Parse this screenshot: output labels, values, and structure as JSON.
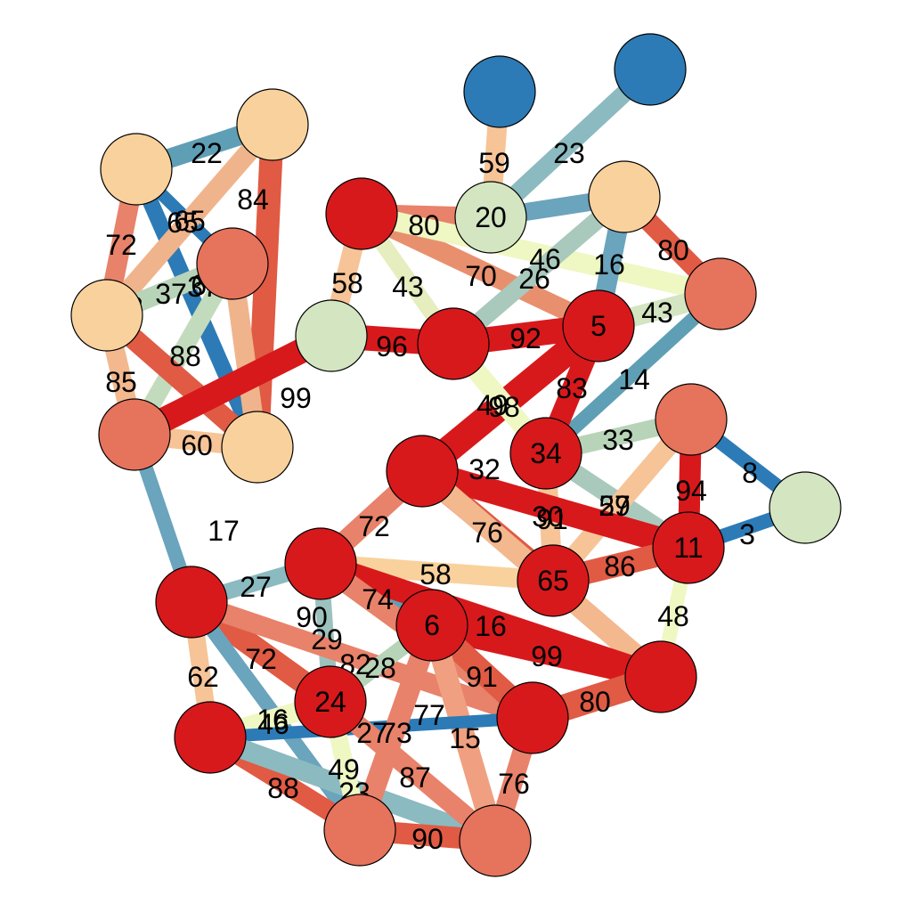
{
  "palette": {
    "dark_red": "#d7191c",
    "salmon": "#e6735c",
    "peach": "#f9d19c",
    "pale_yellow": "#eff7c3",
    "sage": "#d3e5c1",
    "steel_blue": "#2c7bb6"
  },
  "nodes": [
    {
      "id": "n1",
      "label": "",
      "color": "#2c7bb6"
    },
    {
      "id": "n2",
      "label": "",
      "color": "#2c7bb6"
    },
    {
      "id": "n3",
      "label": "20",
      "color": "#d3e5c1"
    },
    {
      "id": "n4",
      "label": "",
      "color": "#f9d19c"
    },
    {
      "id": "n5",
      "label": "",
      "color": "#f9d19c"
    },
    {
      "id": "n6",
      "label": "",
      "color": "#e6735c"
    },
    {
      "id": "n7",
      "label": "",
      "color": "#f9d19c"
    },
    {
      "id": "n8",
      "label": "",
      "color": "#e6735c"
    },
    {
      "id": "n9",
      "label": "",
      "color": "#f9d19c"
    },
    {
      "id": "n10",
      "label": "",
      "color": "#d7191c"
    },
    {
      "id": "n11",
      "label": "",
      "color": "#d3e5c1"
    },
    {
      "id": "n12",
      "label": "",
      "color": "#d7191c"
    },
    {
      "id": "n13",
      "label": "5",
      "color": "#d7191c"
    },
    {
      "id": "n14",
      "label": "",
      "color": "#f9d19c"
    },
    {
      "id": "n15",
      "label": "",
      "color": "#e6735c"
    },
    {
      "id": "n16",
      "label": "34",
      "color": "#d7191c"
    },
    {
      "id": "n17",
      "label": "",
      "color": "#d7191c"
    },
    {
      "id": "n18",
      "label": "",
      "color": "#e6735c"
    },
    {
      "id": "n19",
      "label": "",
      "color": "#d3e5c1"
    },
    {
      "id": "n20",
      "label": "11",
      "color": "#d7191c"
    },
    {
      "id": "n21",
      "label": "65",
      "color": "#d7191c"
    },
    {
      "id": "n22",
      "label": "",
      "color": "#d7191c"
    },
    {
      "id": "n23",
      "label": "",
      "color": "#d7191c"
    },
    {
      "id": "n24",
      "label": "6",
      "color": "#d7191c"
    },
    {
      "id": "n25",
      "label": "",
      "color": "#d7191c"
    },
    {
      "id": "n26",
      "label": "24",
      "color": "#d7191c"
    },
    {
      "id": "n27",
      "label": "",
      "color": "#d7191c"
    },
    {
      "id": "n28",
      "label": "",
      "color": "#d7191c"
    },
    {
      "id": "n29",
      "label": "",
      "color": "#e6735c"
    },
    {
      "id": "n30",
      "label": "",
      "color": "#e6735c"
    }
  ],
  "edges": [
    {
      "from": "n4",
      "to": "n5",
      "label": "22",
      "color": "#5f9fb5"
    },
    {
      "from": "n4",
      "to": "n7",
      "label": "72",
      "color": "#e8826a"
    },
    {
      "from": "n4",
      "to": "n9",
      "label": "3",
      "color": "#2c7bb6"
    },
    {
      "from": "n4",
      "to": "n6",
      "label": "65",
      "color": "#2c7bb6"
    },
    {
      "from": "n5",
      "to": "n7",
      "label": "65",
      "color": "#f0b48c"
    },
    {
      "from": "n5",
      "to": "n9",
      "label": "84",
      "color": "#e05a44"
    },
    {
      "from": "n6",
      "to": "n7",
      "label": "37",
      "color": "#b8d4b8"
    },
    {
      "from": "n6",
      "to": "n8",
      "label": "37",
      "color": "#c3dbbd"
    },
    {
      "from": "n6",
      "to": "n9",
      "label": "64",
      "color": "#f0b48c"
    },
    {
      "from": "n7",
      "to": "n8",
      "label": "88",
      "color": "#f3b88e"
    },
    {
      "from": "n7",
      "to": "n9",
      "label": "85",
      "color": "#e05a44"
    },
    {
      "from": "n9",
      "to": "n8",
      "label": "60",
      "color": "#f6c497"
    },
    {
      "from": "n11",
      "to": "n8",
      "label": "99",
      "color": "#d7191c"
    },
    {
      "from": "n8",
      "to": "n22",
      "label": "17",
      "color": "#6aa4bd"
    },
    {
      "from": "n1",
      "to": "n3",
      "label": "59",
      "color": "#f6c497"
    },
    {
      "from": "n2",
      "to": "n3",
      "label": "23",
      "color": "#8bbac0"
    },
    {
      "from": "n10",
      "to": "n3",
      "label": "80",
      "color": "#e8826a"
    },
    {
      "from": "n3",
      "to": "n14",
      "label": "20",
      "color": "#6aa4bd"
    },
    {
      "from": "n10",
      "to": "n11",
      "label": "58",
      "color": "#f6c497"
    },
    {
      "from": "n10",
      "to": "n12",
      "label": "43",
      "color": "#e6edbe"
    },
    {
      "from": "n10",
      "to": "n13",
      "label": "70",
      "color": "#e8906e"
    },
    {
      "from": "n10",
      "to": "n15",
      "label": "46",
      "color": "#eff7c3"
    },
    {
      "from": "n14",
      "to": "n12",
      "label": "26",
      "color": "#a9c9bd"
    },
    {
      "from": "n14",
      "to": "n15",
      "label": "80",
      "color": "#e05a44"
    },
    {
      "from": "n14",
      "to": "n13",
      "label": "16",
      "color": "#6aa4bd"
    },
    {
      "from": "n11",
      "to": "n12",
      "label": "96",
      "color": "#d7191c"
    },
    {
      "from": "n12",
      "to": "n13",
      "label": "92",
      "color": "#d7191c"
    },
    {
      "from": "n13",
      "to": "n15",
      "label": "43",
      "color": "#d3e5c1"
    },
    {
      "from": "n15",
      "to": "n16",
      "label": "14",
      "color": "#5f9fb5"
    },
    {
      "from": "n13",
      "to": "n17",
      "label": "98",
      "color": "#d7191c"
    },
    {
      "from": "n13",
      "to": "n16",
      "label": "83",
      "color": "#d7191c"
    },
    {
      "from": "n12",
      "to": "n16",
      "label": "49",
      "color": "#eff7c3"
    },
    {
      "from": "n16",
      "to": "n18",
      "label": "33",
      "color": "#b8d4b8"
    },
    {
      "from": "n16",
      "to": "n21",
      "label": "30",
      "color": "#f6c497"
    },
    {
      "from": "n16",
      "to": "n20",
      "label": "57",
      "color": "#a9c9bd"
    },
    {
      "from": "n18",
      "to": "n21",
      "label": "29",
      "color": "#f6c497"
    },
    {
      "from": "n18",
      "to": "n20",
      "label": "94",
      "color": "#d7191c"
    },
    {
      "from": "n18",
      "to": "n19",
      "label": "8",
      "color": "#2c7bb6"
    },
    {
      "from": "n20",
      "to": "n19",
      "label": "3",
      "color": "#2c7bb6"
    },
    {
      "from": "n17",
      "to": "n21",
      "label": "32",
      "color": "#e05a44"
    },
    {
      "from": "n17",
      "to": "n20",
      "label": "91",
      "color": "#d7191c"
    },
    {
      "from": "n17",
      "to": "n23",
      "label": "72",
      "color": "#e8826a"
    },
    {
      "from": "n17",
      "to": "n25",
      "label": "76",
      "color": "#f3b88e"
    },
    {
      "from": "n21",
      "to": "n20",
      "label": "86",
      "color": "#e05a44"
    },
    {
      "from": "n20",
      "to": "n25",
      "label": "48",
      "color": "#eff7c3"
    },
    {
      "from": "n23",
      "to": "n21",
      "label": "58",
      "color": "#f9d19c"
    },
    {
      "from": "n22",
      "to": "n23",
      "label": "27",
      "color": "#8bbac0"
    },
    {
      "from": "n23",
      "to": "n24",
      "label": "74",
      "color": "#5f9fb5"
    },
    {
      "from": "n23",
      "to": "n26",
      "label": "29",
      "color": "#9cc2be"
    },
    {
      "from": "n22",
      "to": "n26",
      "label": "90",
      "color": "#e05a44"
    },
    {
      "from": "n24",
      "to": "n25",
      "label": "99",
      "color": "#d7191c"
    },
    {
      "from": "n23",
      "to": "n25",
      "label": "16",
      "color": "#d7191c"
    },
    {
      "from": "n22",
      "to": "n27",
      "label": "62",
      "color": "#f6c497"
    },
    {
      "from": "n22",
      "to": "n28",
      "label": "72",
      "color": "#e8826a"
    },
    {
      "from": "n22",
      "to": "n29",
      "label": "46",
      "color": "#6aa4bd"
    },
    {
      "from": "n23",
      "to": "n28",
      "label": "82",
      "color": "#e8826a"
    },
    {
      "from": "n24",
      "to": "n26",
      "label": "28",
      "color": "#b8d4b8"
    },
    {
      "from": "n24",
      "to": "n28",
      "label": "91",
      "color": "#e05a44"
    },
    {
      "from": "n24",
      "to": "n30",
      "label": "73",
      "color": "#f0a080"
    },
    {
      "from": "n28",
      "to": "n25",
      "label": "80",
      "color": "#e05a44"
    },
    {
      "from": "n27",
      "to": "n26",
      "label": "16",
      "color": "#eff7c3"
    },
    {
      "from": "n27",
      "to": "n28",
      "label": "77",
      "color": "#2c7bb6"
    },
    {
      "from": "n27",
      "to": "n29",
      "label": "88",
      "color": "#e05a44"
    },
    {
      "from": "n27",
      "to": "n30",
      "label": "23",
      "color": "#8bbac0"
    },
    {
      "from": "n26",
      "to": "n29",
      "label": "49",
      "color": "#eff7c3"
    },
    {
      "from": "n26",
      "to": "n30",
      "label": "27",
      "color": "#e8826a"
    },
    {
      "from": "n24",
      "to": "n29",
      "label": "87",
      "color": "#e8826a"
    },
    {
      "from": "n30",
      "to": "n28",
      "label": "15",
      "color": "#6aa4bd"
    },
    {
      "from": "n28",
      "to": "n30",
      "label": "76",
      "color": "#e8826a"
    },
    {
      "from": "n29",
      "to": "n30",
      "label": "90",
      "color": "#e05a44"
    }
  ]
}
